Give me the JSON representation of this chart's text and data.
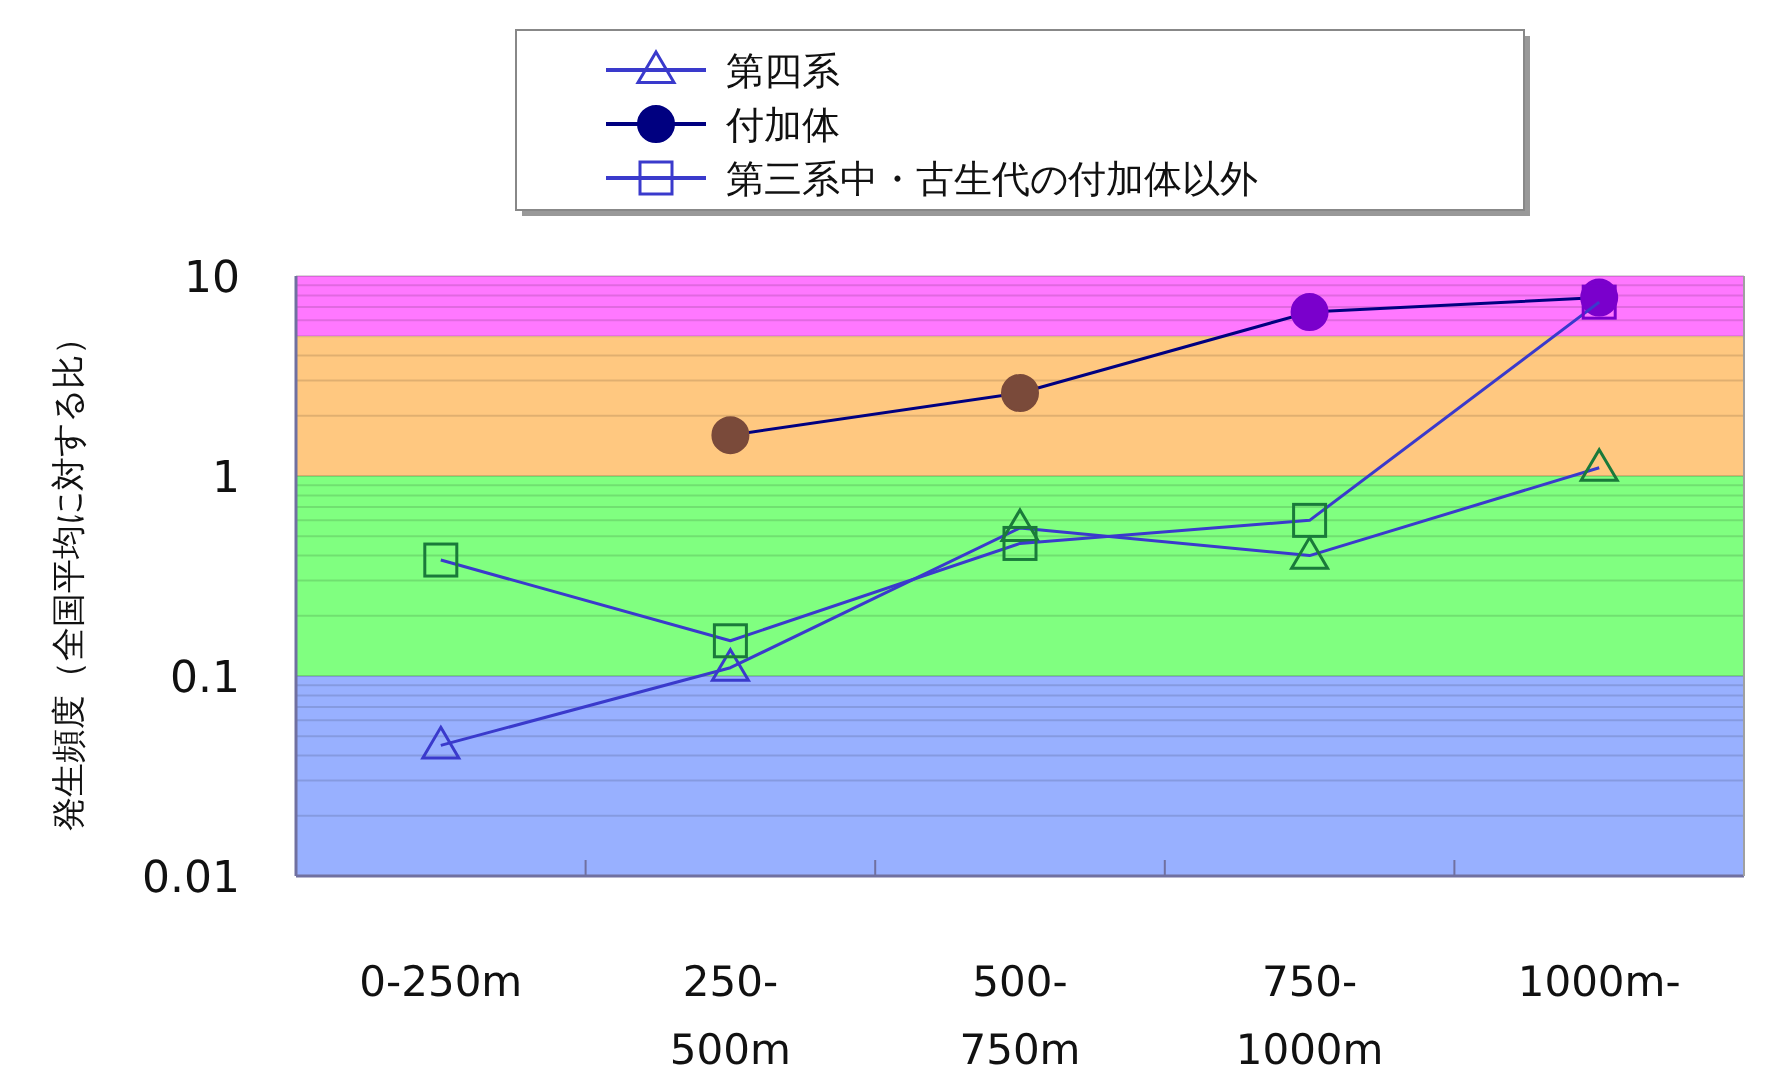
{
  "chart_data": {
    "type": "line",
    "ylabel": "発生頻度（全国平均に対する比）",
    "categories": [
      "0-250m",
      "250-500m",
      "500-750m",
      "750-1000m",
      "1000m-"
    ],
    "log": true,
    "ylim": [
      0.01,
      10
    ],
    "yticks": [
      0.01,
      0.1,
      1,
      10
    ],
    "grid": "y",
    "legend": "top",
    "bands": [
      {
        "axis": "y",
        "from": 5,
        "to": 10,
        "color": "#ff78ff"
      },
      {
        "axis": "y",
        "from": 1,
        "to": 5,
        "color": "#ffc880"
      },
      {
        "axis": "y",
        "from": 0.1,
        "to": 1,
        "color": "#80ff80"
      },
      {
        "axis": "y",
        "from": 0.01,
        "to": 0.1,
        "color": "#98b0ff"
      }
    ],
    "series": [
      {
        "name": "第四系",
        "color": "#3a3acc",
        "marker": "triangle",
        "values": [
          0.045,
          0.11,
          0.55,
          0.4,
          1.1
        ],
        "colors": [
          "#3a3acc",
          "#3a3acc",
          "#1a7a3a",
          "#1a7a3a",
          "#1a7a3a"
        ]
      },
      {
        "name": "付加体",
        "color": "#000080",
        "marker": "circle",
        "values": [
          null,
          1.6,
          2.6,
          6.6,
          7.8
        ],
        "colors": [
          null,
          "#7a4a3a",
          "#7a4a3a",
          "#7a00cc",
          "#7a00cc"
        ]
      },
      {
        "name": "第三系中・古生代の付加体以外",
        "color": "#3a3acc",
        "marker": "square",
        "values": [
          0.38,
          0.15,
          0.46,
          0.6,
          7.4
        ],
        "colors": [
          "#1a7a3a",
          "#1a7a3a",
          "#1a7a3a",
          "#1a7a3a",
          "#7a00cc"
        ]
      }
    ]
  }
}
